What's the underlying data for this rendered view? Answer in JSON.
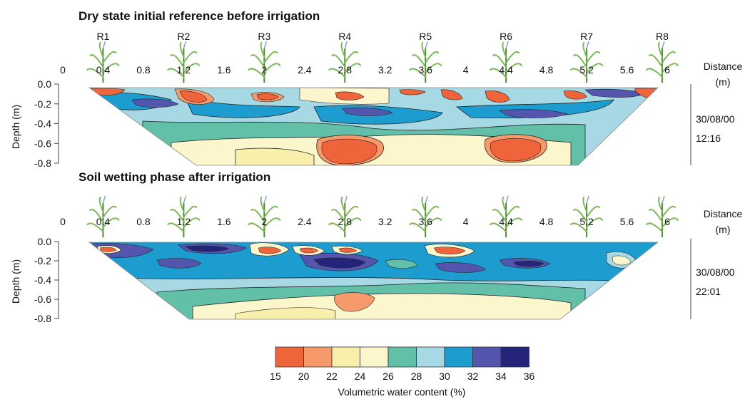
{
  "colors": {
    "c15_20": "#f0643c",
    "c20_22": "#f79a6b",
    "c22_24": "#f8efaa",
    "c24_26": "#fbf6cc",
    "c26_28": "#62bfa8",
    "c28_30": "#a6d9e3",
    "c30_32": "#1d9dcf",
    "c32_34": "#5356ac",
    "c34_36": "#23247a",
    "stem": "#4e8a2c",
    "leaf": "#7cb85a"
  },
  "chart_data": [
    {
      "type": "heatmap",
      "title": "Dry state initial reference before irrigation",
      "xlabel": "Distance (m)",
      "ylabel": "Depth (m)",
      "x_ticks": [
        "0",
        "0.4",
        "0.8",
        "1.2",
        "1.6",
        "2",
        "2.4",
        "2.8",
        "3.2",
        "3.6",
        "4",
        "4.4",
        "4.8",
        "5.2",
        "5.6",
        "6"
      ],
      "x_tick_values": [
        0,
        0.4,
        0.8,
        1.2,
        1.6,
        2.0,
        2.4,
        2.8,
        3.2,
        3.6,
        4.0,
        4.4,
        4.8,
        5.2,
        5.6,
        6.0
      ],
      "y_ticks": [
        "0.0",
        "-0.2",
        "-0.4",
        "-0.6",
        "-0.8"
      ],
      "y_tick_values": [
        0,
        -0.2,
        -0.4,
        -0.6,
        -0.8
      ],
      "xlim": [
        0,
        6.2
      ],
      "ylim": [
        -0.8,
        0
      ],
      "plants": [
        {
          "label": "R1",
          "x": 0.4
        },
        {
          "label": "R2",
          "x": 1.2
        },
        {
          "label": "R3",
          "x": 2.0
        },
        {
          "label": "R4",
          "x": 2.8
        },
        {
          "label": "R5",
          "x": 3.6
        },
        {
          "label": "R6",
          "x": 4.4
        },
        {
          "label": "R7",
          "x": 5.2
        },
        {
          "label": "R8",
          "x": 5.95
        }
      ],
      "date": "30/08/00",
      "time": "12:16"
    },
    {
      "type": "heatmap",
      "title": "Soil wetting phase after irrigation",
      "xlabel": "Distance (m)",
      "ylabel": "Depth (m)",
      "x_ticks": [
        "0",
        "0.4",
        "0.8",
        "1.2",
        "1.6",
        "2",
        "2.4",
        "2.8",
        "3.2",
        "3.6",
        "4",
        "4.4",
        "4.8",
        "5.2",
        "5.6",
        "6"
      ],
      "x_tick_values": [
        0,
        0.4,
        0.8,
        1.2,
        1.6,
        2.0,
        2.4,
        2.8,
        3.2,
        3.6,
        4.0,
        4.4,
        4.8,
        5.2,
        5.6,
        6.0
      ],
      "y_ticks": [
        "0.0",
        "-0.2",
        "-0.4",
        "-0.6",
        "-0.8"
      ],
      "y_tick_values": [
        0,
        -0.2,
        -0.4,
        -0.6,
        -0.8
      ],
      "xlim": [
        0,
        6.2
      ],
      "ylim": [
        -0.8,
        0
      ],
      "plants": [
        {
          "label": "",
          "x": 0.4
        },
        {
          "label": "",
          "x": 1.2
        },
        {
          "label": "",
          "x": 2.0
        },
        {
          "label": "",
          "x": 2.8
        },
        {
          "label": "",
          "x": 3.6
        },
        {
          "label": "",
          "x": 4.4
        },
        {
          "label": "",
          "x": 5.2
        },
        {
          "label": "",
          "x": 5.95
        }
      ],
      "date": "30/08/00",
      "time": "22:01"
    }
  ],
  "colorbar": {
    "label": "Volumetric water content (%)",
    "ticks": [
      "15",
      "20",
      "22",
      "24",
      "26",
      "28",
      "30",
      "32",
      "34",
      "36"
    ],
    "tick_values": [
      15,
      20,
      22,
      24,
      26,
      28,
      30,
      32,
      34,
      36
    ],
    "bin_colors": [
      "#f0643c",
      "#f79a6b",
      "#f8efaa",
      "#fbf6cc",
      "#62bfa8",
      "#a6d9e3",
      "#1d9dcf",
      "#5356ac",
      "#23247a"
    ]
  },
  "labels": {
    "distance": "Distance",
    "distance_unit": "(m)",
    "depth": "Depth (m)"
  }
}
